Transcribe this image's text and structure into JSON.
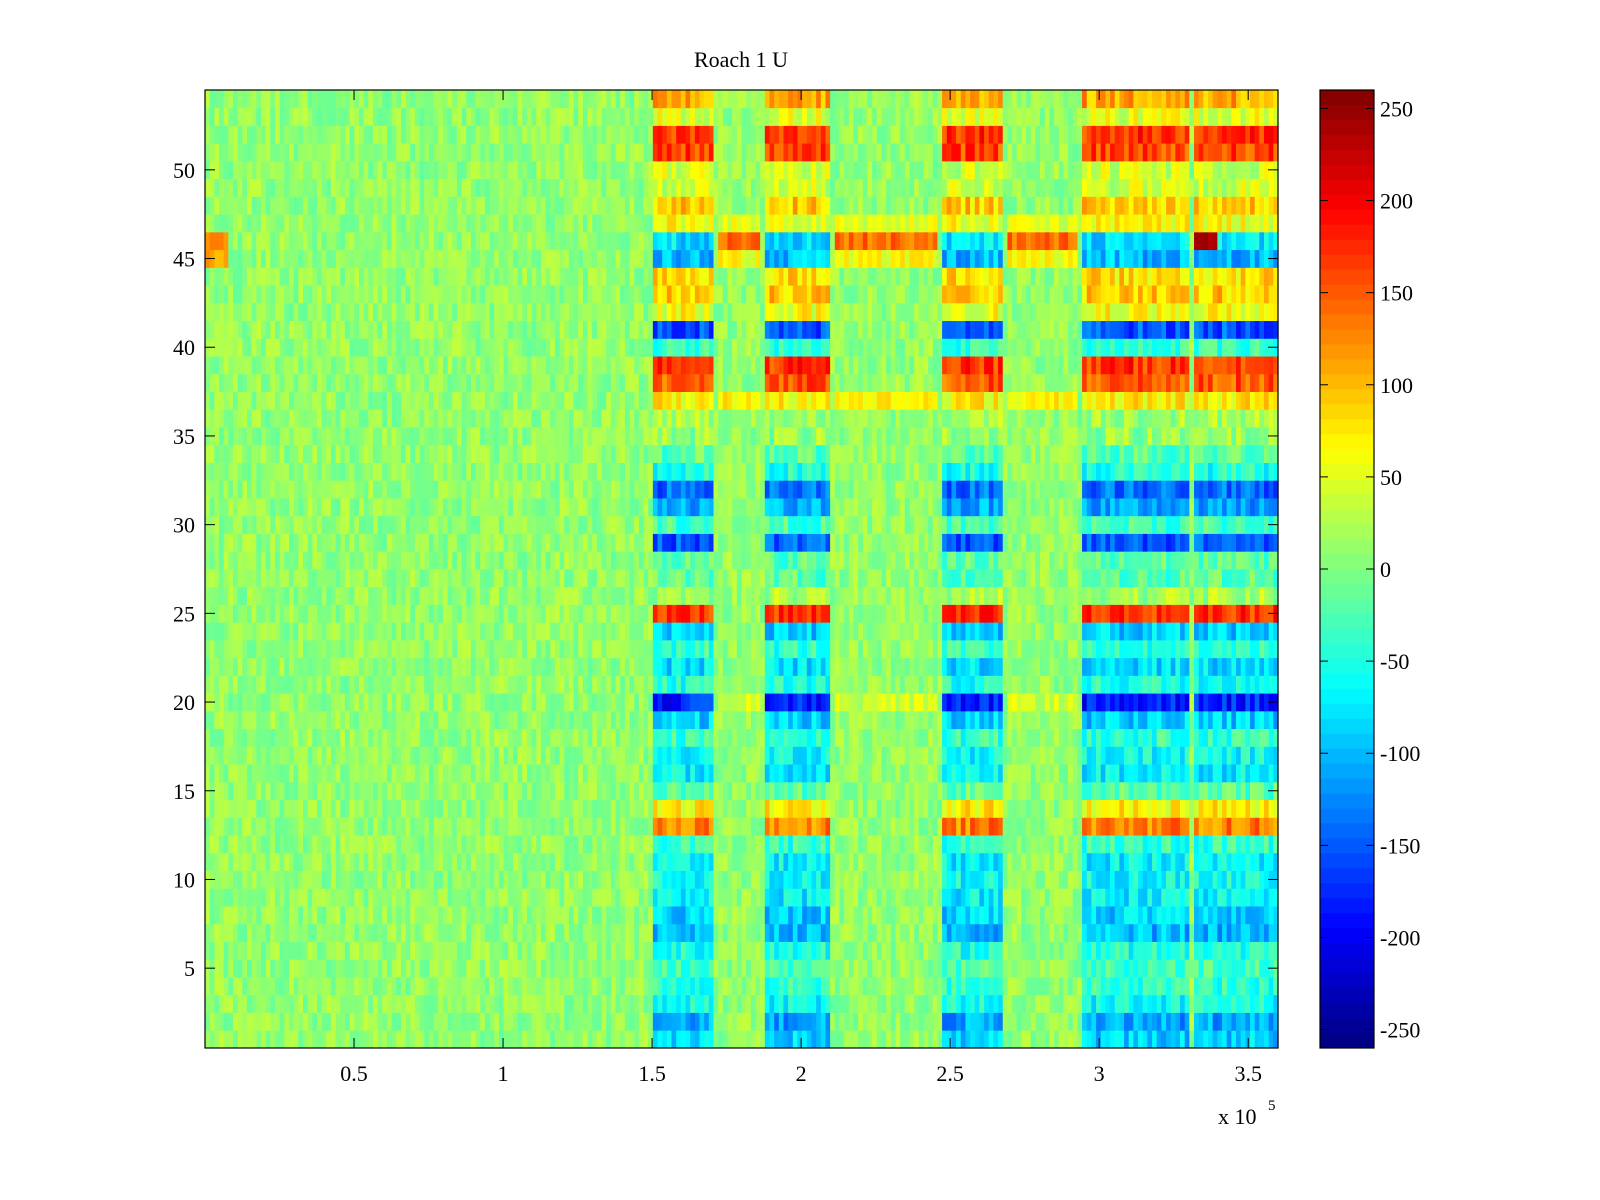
{
  "chart_data": {
    "type": "heatmap",
    "title": "Roach 1 U",
    "xlabel": "",
    "ylabel": "",
    "x_range": [
      0,
      360000
    ],
    "y_range": [
      0.5,
      54.5
    ],
    "x_ticks": [
      50000,
      100000,
      150000,
      200000,
      250000,
      300000,
      350000
    ],
    "x_tick_labels": [
      "0.5",
      "1",
      "1.5",
      "2",
      "2.5",
      "3",
      "3.5"
    ],
    "x_exponent_label": {
      "base": "x 10",
      "exponent": "5"
    },
    "y_ticks": [
      5,
      10,
      15,
      20,
      25,
      30,
      35,
      40,
      45,
      50
    ],
    "y_tick_labels": [
      "5",
      "10",
      "15",
      "20",
      "25",
      "30",
      "35",
      "40",
      "45",
      "50"
    ],
    "colorbar": {
      "colormap": "jet",
      "range": [
        -260,
        260
      ],
      "ticks": [
        250,
        200,
        150,
        100,
        50,
        0,
        -50,
        -100,
        -150,
        -200,
        -250
      ],
      "tick_labels": [
        "250",
        "200",
        "150",
        "100",
        "50",
        "0",
        "-50",
        "-100",
        "-150",
        "-200",
        "-250"
      ]
    },
    "baseline_value": 10,
    "active_segments": [
      {
        "x_start": 150000,
        "x_end": 170000
      },
      {
        "x_start": 188000,
        "x_end": 210000
      },
      {
        "x_start": 248000,
        "x_end": 268000
      },
      {
        "x_start": 295000,
        "x_end": 330000
      },
      {
        "x_start": 332000,
        "x_end": 360000
      }
    ],
    "inter_segments": [
      {
        "x_start": 172000,
        "x_end": 186000
      },
      {
        "x_start": 212000,
        "x_end": 246000
      },
      {
        "x_start": 270000,
        "x_end": 293000
      }
    ],
    "active_row_values": [
      {
        "row": 1,
        "value": -90
      },
      {
        "row": 2,
        "value": -110
      },
      {
        "row": 3,
        "value": -60
      },
      {
        "row": 4,
        "value": -40
      },
      {
        "row": 5,
        "value": -30
      },
      {
        "row": 6,
        "value": -50
      },
      {
        "row": 7,
        "value": -100
      },
      {
        "row": 8,
        "value": -90
      },
      {
        "row": 9,
        "value": -70
      },
      {
        "row": 10,
        "value": -60
      },
      {
        "row": 11,
        "value": -70
      },
      {
        "row": 12,
        "value": -40
      },
      {
        "row": 13,
        "value": 130
      },
      {
        "row": 14,
        "value": 70
      },
      {
        "row": 15,
        "value": -20
      },
      {
        "row": 16,
        "value": -70
      },
      {
        "row": 17,
        "value": -60
      },
      {
        "row": 18,
        "value": -40
      },
      {
        "row": 19,
        "value": -90
      },
      {
        "row": 20,
        "value": -180
      },
      {
        "row": 21,
        "value": -50
      },
      {
        "row": 22,
        "value": -80
      },
      {
        "row": 23,
        "value": -40
      },
      {
        "row": 24,
        "value": -90
      },
      {
        "row": 25,
        "value": 170
      },
      {
        "row": 26,
        "value": 20
      },
      {
        "row": 27,
        "value": -20
      },
      {
        "row": 28,
        "value": -20
      },
      {
        "row": 29,
        "value": -150
      },
      {
        "row": 30,
        "value": -30
      },
      {
        "row": 31,
        "value": -110
      },
      {
        "row": 32,
        "value": -140
      },
      {
        "row": 33,
        "value": -50
      },
      {
        "row": 34,
        "value": -20
      },
      {
        "row": 35,
        "value": 10
      },
      {
        "row": 36,
        "value": 20
      },
      {
        "row": 37,
        "value": 70
      },
      {
        "row": 38,
        "value": 150
      },
      {
        "row": 39,
        "value": 170
      },
      {
        "row": 40,
        "value": -40
      },
      {
        "row": 41,
        "value": -150
      },
      {
        "row": 42,
        "value": 60
      },
      {
        "row": 43,
        "value": 90
      },
      {
        "row": 44,
        "value": 80
      },
      {
        "row": 45,
        "value": -100
      },
      {
        "row": 46,
        "value": -80
      },
      {
        "row": 47,
        "value": 60
      },
      {
        "row": 48,
        "value": 90
      },
      {
        "row": 49,
        "value": 40
      },
      {
        "row": 50,
        "value": 40
      },
      {
        "row": 51,
        "value": 160
      },
      {
        "row": 52,
        "value": 170
      },
      {
        "row": 53,
        "value": 50
      },
      {
        "row": 54,
        "value": 110
      }
    ],
    "inter_row_values": [
      {
        "row": 37,
        "value": 70
      },
      {
        "row": 46,
        "value": 140
      },
      {
        "row": 45,
        "value": 60
      },
      {
        "row": 47,
        "value": 50
      },
      {
        "row": 20,
        "value": 40
      }
    ],
    "tail_peak": {
      "row": 46,
      "x_start": 332000,
      "x_end": 340000,
      "value": 240
    },
    "early_stripes": [
      {
        "row": 46,
        "x_start": 0,
        "x_end": 8000,
        "value": 130
      },
      {
        "row": 45,
        "x_start": 0,
        "x_end": 8000,
        "value": 110
      }
    ]
  }
}
